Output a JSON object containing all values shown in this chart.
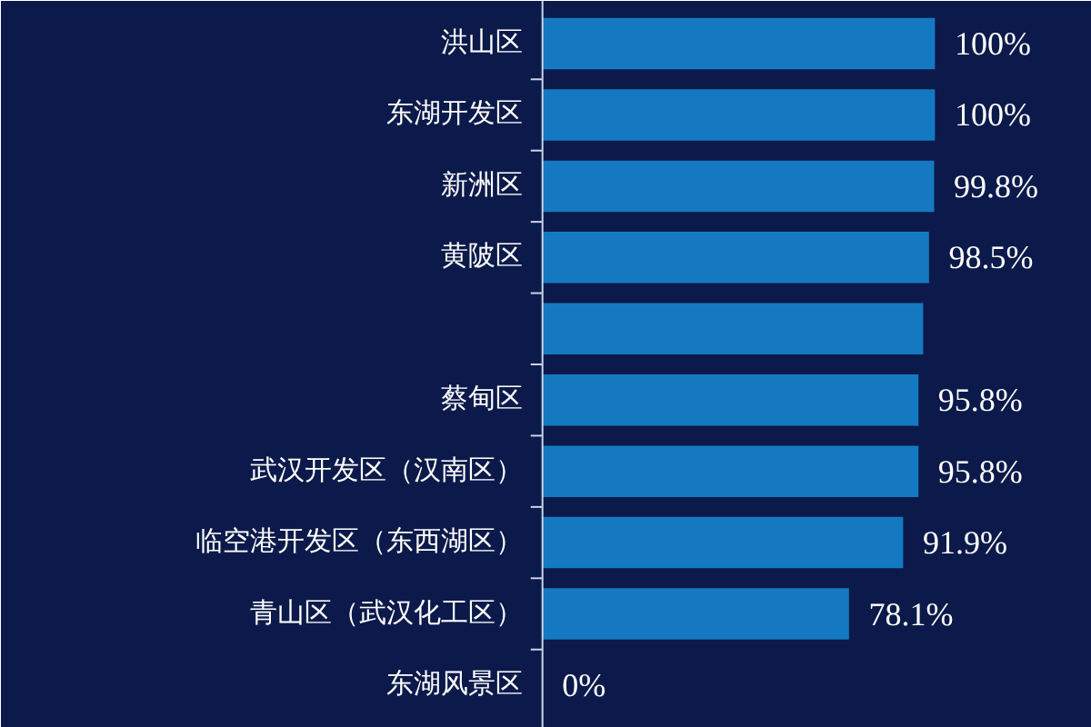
{
  "chart_data": {
    "type": "bar",
    "orientation": "horizontal",
    "categories": [
      "洪山区",
      "东湖开发区",
      "新洲区",
      "黄陂区",
      null,
      "蔡甸区",
      "武汉开发区（汉南区）",
      "临空港开发区（东西湖区）",
      "青山区（武汉化工区）",
      "东湖风景区"
    ],
    "values": [
      100,
      100,
      99.8,
      98.5,
      97,
      95.8,
      95.8,
      91.9,
      78.1,
      0
    ],
    "value_labels": [
      "100%",
      "100%",
      "99.8%",
      "98.5%",
      null,
      "95.8%",
      "95.8%",
      "91.9%",
      "78.1%",
      "0%"
    ],
    "color": "#1479c0"
  }
}
